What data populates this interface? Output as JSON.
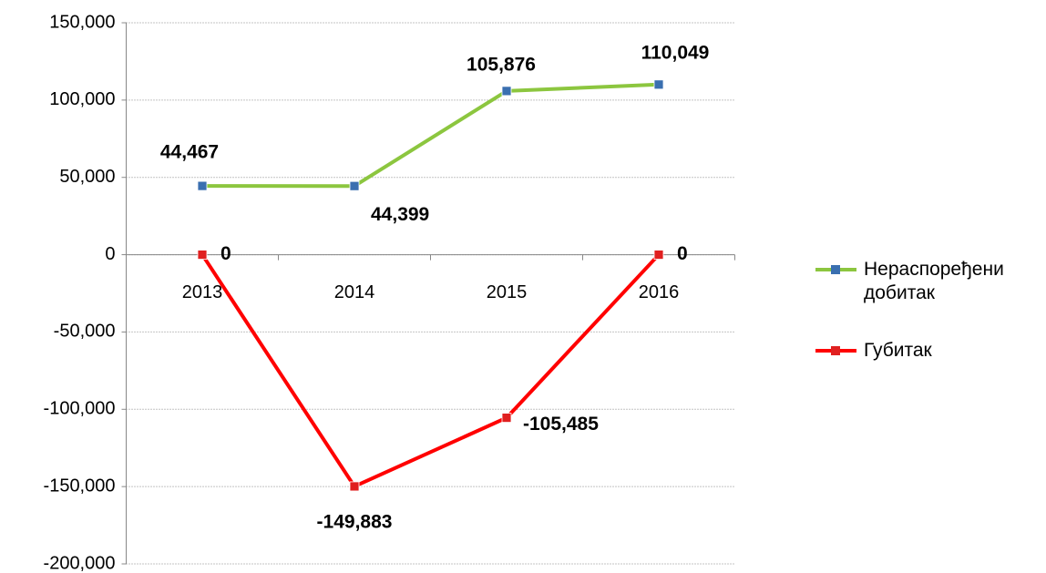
{
  "chart_data": {
    "type": "line",
    "categories": [
      "2013",
      "2014",
      "2015",
      "2016"
    ],
    "series": [
      {
        "name": "Нераспоређени добитак",
        "color": "#8cc63f",
        "marker_color": "#3a6fb0",
        "values": [
          44467,
          44399,
          105876,
          110049
        ],
        "value_labels": [
          "44,467",
          "44,399",
          "105,876",
          "110,049"
        ]
      },
      {
        "name": "Губитак",
        "color": "#ff0000",
        "marker_color": "#e02020",
        "values": [
          0,
          -149883,
          -105485,
          0
        ],
        "value_labels": [
          "0",
          "-149,883",
          "-105,485",
          "0"
        ]
      }
    ],
    "ylim": [
      -200000,
      150000
    ],
    "yticks": [
      {
        "value": -200000,
        "label": "-200,000"
      },
      {
        "value": -150000,
        "label": "-150,000"
      },
      {
        "value": -100000,
        "label": "-100,000"
      },
      {
        "value": -50000,
        "label": "-50,000"
      },
      0,
      {
        "value": 50000,
        "label": "50,000"
      },
      {
        "value": 100000,
        "label": "100,000"
      },
      {
        "value": 150000,
        "label": "150,000"
      }
    ],
    "grid": true,
    "legend": "right"
  }
}
